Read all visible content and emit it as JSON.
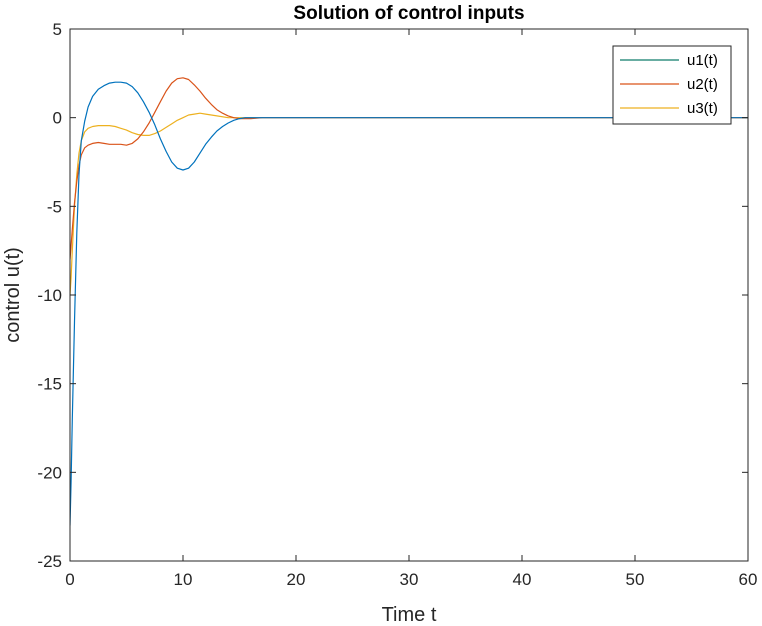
{
  "chart_data": {
    "type": "line",
    "title": "Solution of control inputs",
    "xlabel": "Time t",
    "ylabel": "control u(t)",
    "xlim": [
      0,
      60
    ],
    "ylim": [
      -25,
      5
    ],
    "xticks": [
      0,
      10,
      20,
      30,
      40,
      50,
      60
    ],
    "yticks": [
      -25,
      -20,
      -15,
      -10,
      -5,
      0,
      5
    ],
    "grid": false,
    "legend_position": "top-right",
    "series": [
      {
        "name": "u1(t)",
        "color": "#0072BD",
        "legend_color": "#0E7C6B",
        "x": [
          0,
          0.1,
          0.2,
          0.4,
          0.6,
          0.8,
          1.0,
          1.3,
          1.6,
          2.0,
          2.5,
          3.0,
          3.5,
          4.0,
          4.5,
          5.0,
          5.5,
          6.0,
          6.5,
          7.0,
          7.5,
          8.0,
          8.5,
          9.0,
          9.5,
          10.0,
          10.5,
          11.0,
          11.5,
          12.0,
          12.5,
          13.0,
          13.5,
          14.0,
          14.5,
          15.0,
          15.5,
          16.0,
          16.5,
          17.0,
          18.0,
          19.0,
          20.0,
          21.0,
          22.0,
          60.0
        ],
        "y": [
          -23.0,
          -20.5,
          -17.0,
          -11.5,
          -6.5,
          -3.2,
          -1.3,
          -0.2,
          0.6,
          1.2,
          1.6,
          1.8,
          1.95,
          2.0,
          2.0,
          1.95,
          1.75,
          1.4,
          0.9,
          0.3,
          -0.4,
          -1.2,
          -1.9,
          -2.5,
          -2.85,
          -2.95,
          -2.85,
          -2.5,
          -2.0,
          -1.5,
          -1.1,
          -0.75,
          -0.5,
          -0.3,
          -0.15,
          -0.05,
          0.0,
          0.0,
          0.0,
          0.0,
          0.0,
          0.0,
          0.0,
          0.0,
          0.0,
          0.0
        ]
      },
      {
        "name": "u2(t)",
        "color": "#D95319",
        "x": [
          0,
          0.1,
          0.2,
          0.4,
          0.6,
          0.8,
          1.0,
          1.3,
          1.6,
          2.0,
          2.5,
          3.0,
          3.5,
          4.0,
          4.5,
          5.0,
          5.5,
          6.0,
          6.5,
          7.0,
          7.5,
          8.0,
          8.5,
          9.0,
          9.5,
          10.0,
          10.5,
          11.0,
          11.5,
          12.0,
          12.5,
          13.0,
          13.5,
          14.0,
          14.5,
          15.0,
          15.5,
          16.0,
          17.0,
          18.0,
          20.0,
          22.0,
          60.0
        ],
        "y": [
          -8.0,
          -7.2,
          -6.3,
          -4.8,
          -3.6,
          -2.7,
          -2.1,
          -1.7,
          -1.55,
          -1.45,
          -1.4,
          -1.45,
          -1.5,
          -1.5,
          -1.5,
          -1.55,
          -1.45,
          -1.2,
          -0.8,
          -0.3,
          0.3,
          0.9,
          1.5,
          1.95,
          2.2,
          2.25,
          2.15,
          1.85,
          1.5,
          1.1,
          0.75,
          0.45,
          0.25,
          0.1,
          0.0,
          -0.05,
          -0.05,
          -0.05,
          0.0,
          0.0,
          0.0,
          0.0,
          0.0
        ]
      },
      {
        "name": "u3(t)",
        "color": "#EDB120",
        "x": [
          0,
          0.1,
          0.2,
          0.4,
          0.6,
          0.8,
          1.0,
          1.3,
          1.6,
          2.0,
          2.5,
          3.0,
          3.5,
          4.0,
          4.5,
          5.0,
          5.5,
          6.0,
          6.5,
          7.0,
          7.5,
          8.0,
          8.5,
          9.0,
          9.5,
          10.0,
          10.5,
          11.0,
          11.5,
          12.0,
          12.5,
          13.0,
          14.0,
          15.0,
          16.0,
          17.0,
          18.0,
          20.0,
          22.0,
          60.0
        ],
        "y": [
          -10.0,
          -9.0,
          -7.5,
          -5.0,
          -3.2,
          -2.0,
          -1.3,
          -0.8,
          -0.6,
          -0.5,
          -0.45,
          -0.45,
          -0.45,
          -0.5,
          -0.6,
          -0.7,
          -0.85,
          -0.95,
          -1.0,
          -1.0,
          -0.9,
          -0.75,
          -0.55,
          -0.35,
          -0.15,
          0.0,
          0.15,
          0.2,
          0.25,
          0.2,
          0.15,
          0.1,
          0.0,
          0.0,
          0.0,
          0.0,
          0.0,
          0.0,
          0.0,
          0.0
        ]
      }
    ]
  }
}
